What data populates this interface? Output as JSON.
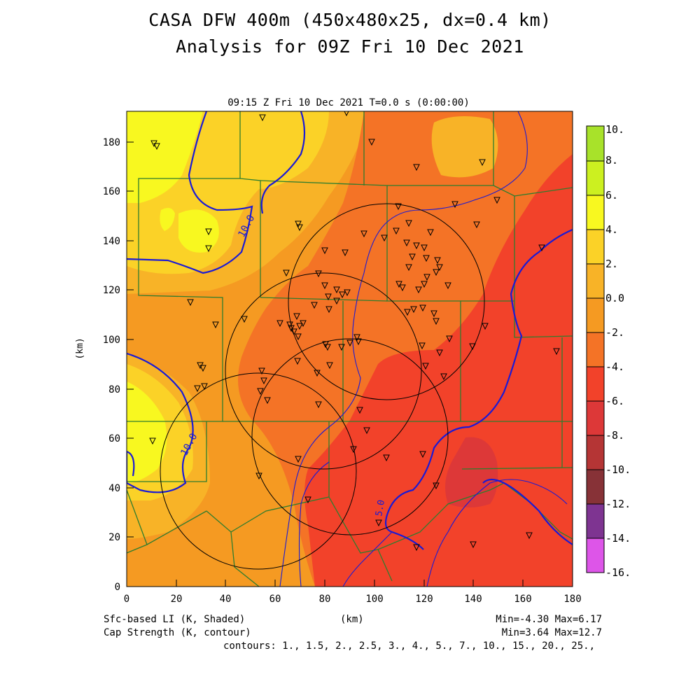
{
  "header": {
    "title_line1": "CASA DFW 400m (450x480x25, dx=0.4 km)",
    "title_line2": "Analysis for 09Z Fri 10 Dec 2021",
    "valid_time": "09:15 Z Fri 10 Dec 2021    T=0.0 s (0:00:00)"
  },
  "axes": {
    "x_label": "(km)",
    "y_label": "(km)",
    "x_ticks": [
      "0",
      "20",
      "40",
      "60",
      "80",
      "100",
      "120",
      "140",
      "160",
      "180"
    ],
    "y_ticks": [
      "0",
      "20",
      "40",
      "60",
      "80",
      "100",
      "120",
      "140",
      "160",
      "180"
    ]
  },
  "colorbar": {
    "labels": [
      "10.",
      "8.",
      "6.",
      "4.",
      "2.",
      "0.0",
      "-2.",
      "-4.",
      "-6.",
      "-8.",
      "-10.",
      "-12.",
      "-14.",
      "-16."
    ],
    "colors": [
      "#a8e22a",
      "#ccf020",
      "#f8f820",
      "#fbd227",
      "#f8b327",
      "#f59a22",
      "#f47326",
      "#f2422a",
      "#dd3838",
      "#b53535",
      "#873237",
      "#7e3491",
      "#b841c0",
      "#dd55e8"
    ]
  },
  "footer": {
    "shaded_label": "Sfc-based LI (K, Shaded)",
    "shaded_minmax": "Min=-4.30 Max=6.17",
    "contour_label": "Cap Strength (K, contour)",
    "contour_minmax": "Min=3.64 Max=12.7",
    "contours": "contours: 1., 1.5, 2., 2.5, 3., 4., 5., 7., 10., 15., 20., 25.,",
    "x_unit": "(km)"
  },
  "contour_labels": [
    "10.0",
    "10.0",
    "5.0"
  ],
  "map_colors": {
    "county_lines": "#2e7d2e",
    "contour_lines": "#1a1ad6",
    "radar_rings": "#000000"
  }
}
